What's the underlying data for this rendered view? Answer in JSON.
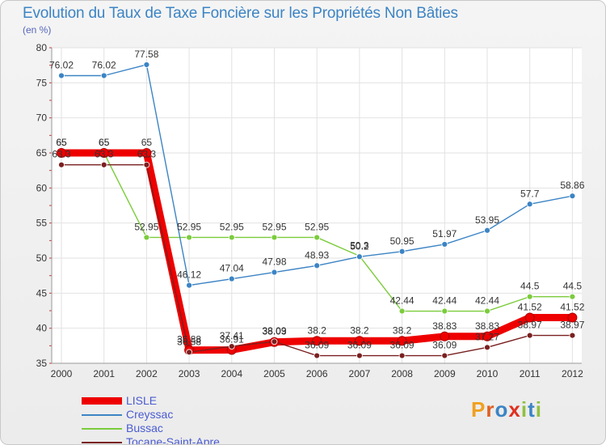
{
  "header": {
    "title": "Evolution du Taux de Taxe Foncière sur les Propriétés Non Bâties",
    "unit": "(en %)"
  },
  "logo": {
    "letters": [
      "P",
      "r",
      "o",
      "x",
      "i",
      "t",
      "i"
    ],
    "colors": [
      "#f0a020",
      "#e06020",
      "#3c84c4",
      "#e03020",
      "#90c040",
      "#3c84c4",
      "#90c040"
    ]
  },
  "chart_data": {
    "type": "line",
    "title": "Evolution du Taux de Taxe Foncière sur les Propriétés Non Bâties",
    "ylabel": "(en %)",
    "xlabel": "",
    "x": [
      "2000",
      "2001",
      "2002",
      "2003",
      "2004",
      "2005",
      "2006",
      "2007",
      "2008",
      "2009",
      "2010",
      "2011",
      "2012"
    ],
    "ylim": [
      35,
      80
    ],
    "yticks": [
      35,
      40,
      45,
      50,
      55,
      60,
      65,
      70,
      75,
      80
    ],
    "legend_position": "bottom-left",
    "series": [
      {
        "name": "LISLE",
        "color": "#ee0000",
        "values": [
          65,
          65,
          65,
          36.88,
          36.91,
          38.03,
          38.2,
          38.2,
          38.2,
          38.83,
          38.83,
          41.52,
          41.52
        ],
        "labels": [
          "65",
          "65",
          "65",
          "36.88",
          "36.91",
          "38.03",
          "38.2",
          "38.2",
          "38.2",
          "38.83",
          "38.83",
          "41.52",
          "41.52"
        ]
      },
      {
        "name": "Creyssac",
        "color": "#3c84c4",
        "values": [
          76.02,
          76.02,
          77.58,
          46.12,
          47.04,
          47.98,
          48.93,
          50.2,
          50.95,
          51.97,
          53.95,
          57.7,
          58.86
        ],
        "labels": [
          "76.02",
          "76.02",
          "77.58",
          "46.12",
          "47.04",
          "47.98",
          "48.93",
          "50.2",
          "50.95",
          "51.97",
          "53.95",
          "57.7",
          "58.86"
        ]
      },
      {
        "name": "Bussac",
        "color": "#7bcc3c",
        "values": [
          65,
          65,
          52.95,
          52.95,
          52.95,
          52.95,
          52.95,
          50.3,
          42.44,
          42.44,
          42.44,
          44.5,
          44.5
        ],
        "labels": [
          "65",
          "65",
          "52.95",
          "52.95",
          "52.95",
          "52.95",
          "52.95",
          "50.3",
          "42.44",
          "42.44",
          "42.44",
          "44.5",
          "44.5"
        ]
      },
      {
        "name": "Tocane-Saint-Apre",
        "color": "#7a2020",
        "values": [
          63.3,
          63.3,
          63.3,
          36.58,
          37.41,
          38.09,
          36.09,
          36.09,
          36.09,
          36.09,
          37.27,
          38.97,
          38.97
        ],
        "labels": [
          "63.3",
          "63.3",
          "63.3",
          "36.58",
          "37.41",
          "38.09",
          "36.09",
          "36.09",
          "36.09",
          "36.09",
          "37.27",
          "38.97",
          "38.97"
        ]
      }
    ]
  }
}
